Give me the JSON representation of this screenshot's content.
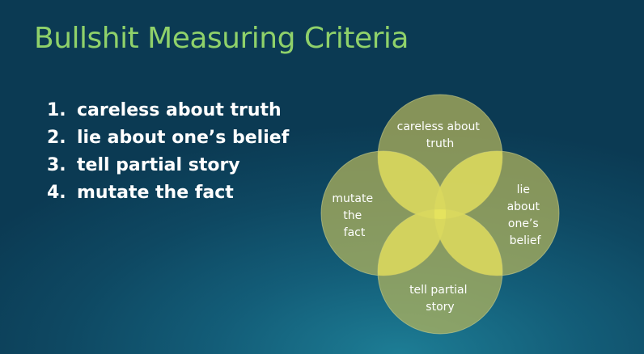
{
  "slide": {
    "title": "Bullshit Measuring Criteria",
    "criteria": [
      {
        "number": "1.",
        "text": "careless about truth"
      },
      {
        "number": "2.",
        "text": "lie about one’s belief"
      },
      {
        "number": "3.",
        "text": "tell partial story"
      },
      {
        "number": "4.",
        "text": "mutate the fact"
      }
    ]
  },
  "venn": {
    "top": [
      "careless about",
      "truth"
    ],
    "right": [
      "lie",
      "about",
      "one’s",
      "belief"
    ],
    "bottom": [
      "tell partial",
      "story"
    ],
    "left": [
      "mutate",
      "the",
      "fact"
    ]
  },
  "colors": {
    "title": "#8fd16a",
    "circle_fill": "#b6b65c",
    "overlap_highlight": "#dede60"
  }
}
